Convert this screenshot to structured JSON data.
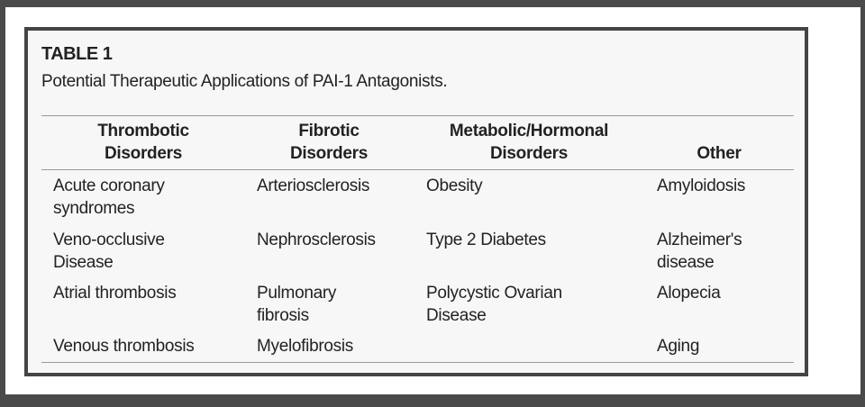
{
  "table": {
    "label": "TABLE 1",
    "caption": "Potential Therapeutic Applications of PAI-1 Antagonists.",
    "headers": [
      [
        "Thrombotic",
        "Disorders"
      ],
      [
        "Fibrotic",
        "Disorders"
      ],
      [
        "Metabolic/Hormonal",
        "Disorders"
      ],
      [
        "",
        "Other"
      ]
    ],
    "rows": [
      [
        [
          "Acute coronary",
          "syndromes"
        ],
        [
          "Arteriosclerosis"
        ],
        [
          "Obesity"
        ],
        [
          "Amyloidosis"
        ]
      ],
      [
        [
          "Veno-occlusive",
          "Disease"
        ],
        [
          "Nephrosclerosis"
        ],
        [
          "Type 2 Diabetes"
        ],
        [
          "Alzheimer's",
          "disease"
        ]
      ],
      [
        [
          "Atrial thrombosis"
        ],
        [
          "Pulmonary",
          "fibrosis"
        ],
        [
          "Polycystic Ovarian",
          "Disease"
        ],
        [
          "Alopecia"
        ]
      ],
      [
        [
          "Venous thrombosis"
        ],
        [
          "Myelofibrosis"
        ],
        [
          ""
        ],
        [
          "Aging"
        ]
      ]
    ]
  }
}
